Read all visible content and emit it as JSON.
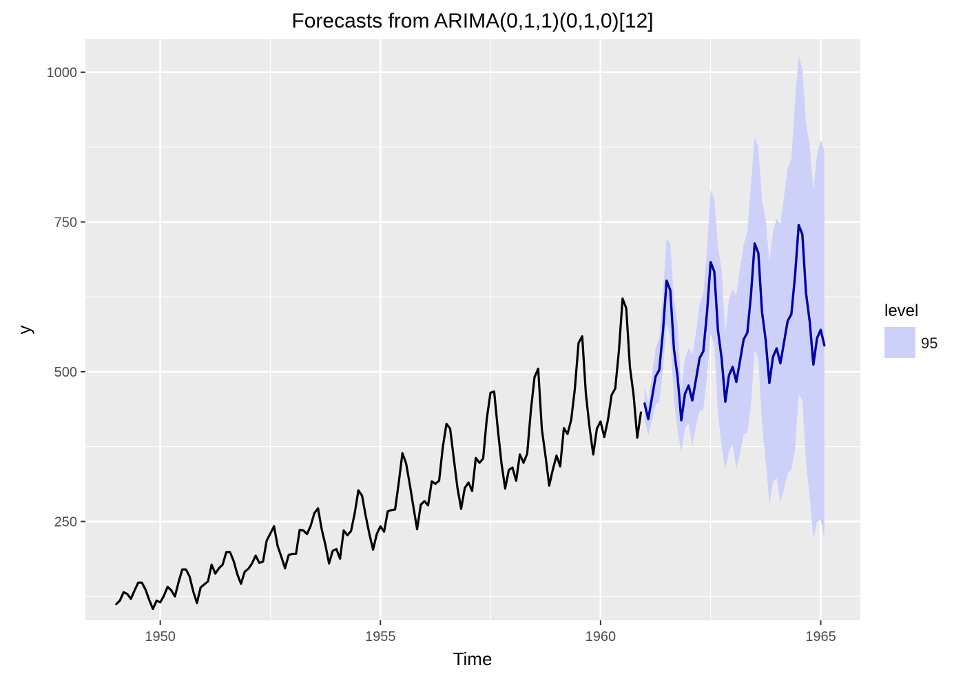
{
  "chart_data": {
    "type": "line",
    "title": "Forecasts from ARIMA(0,1,1)(0,1,0)[12]",
    "xlabel": "Time",
    "ylabel": "y",
    "xlim": [
      1948.3,
      1965.9
    ],
    "ylim": [
      85,
      1055
    ],
    "x_ticks": [
      1950,
      1955,
      1960,
      1965
    ],
    "x_tick_labels": [
      "1950",
      "1955",
      "1960",
      "1965"
    ],
    "y_ticks": [
      250,
      500,
      750,
      1000
    ],
    "y_tick_labels": [
      "250",
      "500",
      "750",
      "1000"
    ],
    "grid": true,
    "legend": {
      "position": "right",
      "title": "level",
      "entries": [
        {
          "label": "95",
          "color": "#cdd1f9"
        }
      ]
    },
    "colors": {
      "panel_background": "#ebebeb",
      "grid": "#ffffff",
      "history_line": "#000000",
      "forecast_line": "#0000aa",
      "interval_fill": "#cdd1f9"
    },
    "history": {
      "start": 1949.0,
      "frequency": 12,
      "values": [
        112,
        118,
        132,
        129,
        121,
        135,
        148,
        148,
        136,
        119,
        104,
        118,
        115,
        126,
        141,
        135,
        125,
        149,
        170,
        170,
        158,
        133,
        114,
        140,
        145,
        150,
        178,
        163,
        172,
        178,
        199,
        199,
        184,
        162,
        146,
        166,
        171,
        180,
        193,
        181,
        183,
        218,
        230,
        242,
        209,
        191,
        172,
        194,
        196,
        196,
        236,
        235,
        229,
        243,
        264,
        272,
        237,
        211,
        180,
        201,
        204,
        188,
        235,
        227,
        234,
        264,
        302,
        293,
        259,
        229,
        203,
        229,
        242,
        233,
        267,
        269,
        270,
        315,
        364,
        347,
        312,
        274,
        237,
        278,
        284,
        277,
        317,
        313,
        318,
        374,
        413,
        405,
        355,
        306,
        271,
        306,
        315,
        301,
        356,
        348,
        355,
        422,
        465,
        467,
        404,
        347,
        305,
        336,
        340,
        318,
        362,
        348,
        363,
        435,
        491,
        505,
        404,
        359,
        310,
        337,
        360,
        342,
        406,
        396,
        420,
        472,
        548,
        559,
        463,
        407,
        362,
        405,
        417,
        391,
        419,
        461,
        472,
        535,
        622,
        606,
        508,
        461,
        390,
        432
      ]
    },
    "forecast": {
      "start": 1961.0,
      "frequency": 12,
      "mean": [
        447,
        421,
        456,
        492,
        503,
        567,
        652,
        636,
        538,
        491,
        419,
        463,
        477,
        452,
        487,
        523,
        534,
        598,
        683,
        667,
        569,
        522,
        450,
        494,
        508,
        483,
        518,
        554,
        565,
        629,
        714,
        698,
        600,
        553,
        481,
        525,
        539,
        514,
        549,
        585,
        596,
        660,
        745,
        729,
        631,
        584,
        512,
        556,
        570,
        544
      ],
      "lower95": [
        419,
        394,
        418,
        445,
        449,
        504,
        581,
        558,
        454,
        401,
        366,
        405,
        414,
        376,
        409,
        434,
        437,
        493,
        563,
        545,
        429,
        375,
        336,
        367,
        378,
        338,
        363,
        396,
        397,
        445,
        536,
        521,
        413,
        351,
        279,
        316,
        323,
        282,
        305,
        330,
        337,
        370,
        463,
        452,
        346,
        291,
        220,
        249,
        253,
        220
      ],
      "upper95": [
        475,
        448,
        494,
        539,
        557,
        630,
        723,
        714,
        622,
        581,
        472,
        521,
        540,
        528,
        565,
        612,
        631,
        703,
        803,
        789,
        709,
        669,
        564,
        621,
        638,
        628,
        673,
        712,
        733,
        813,
        892,
        875,
        787,
        755,
        683,
        734,
        755,
        746,
        793,
        840,
        855,
        950,
        1027,
        1006,
        916,
        877,
        804,
        863,
        887,
        868
      ]
    }
  }
}
